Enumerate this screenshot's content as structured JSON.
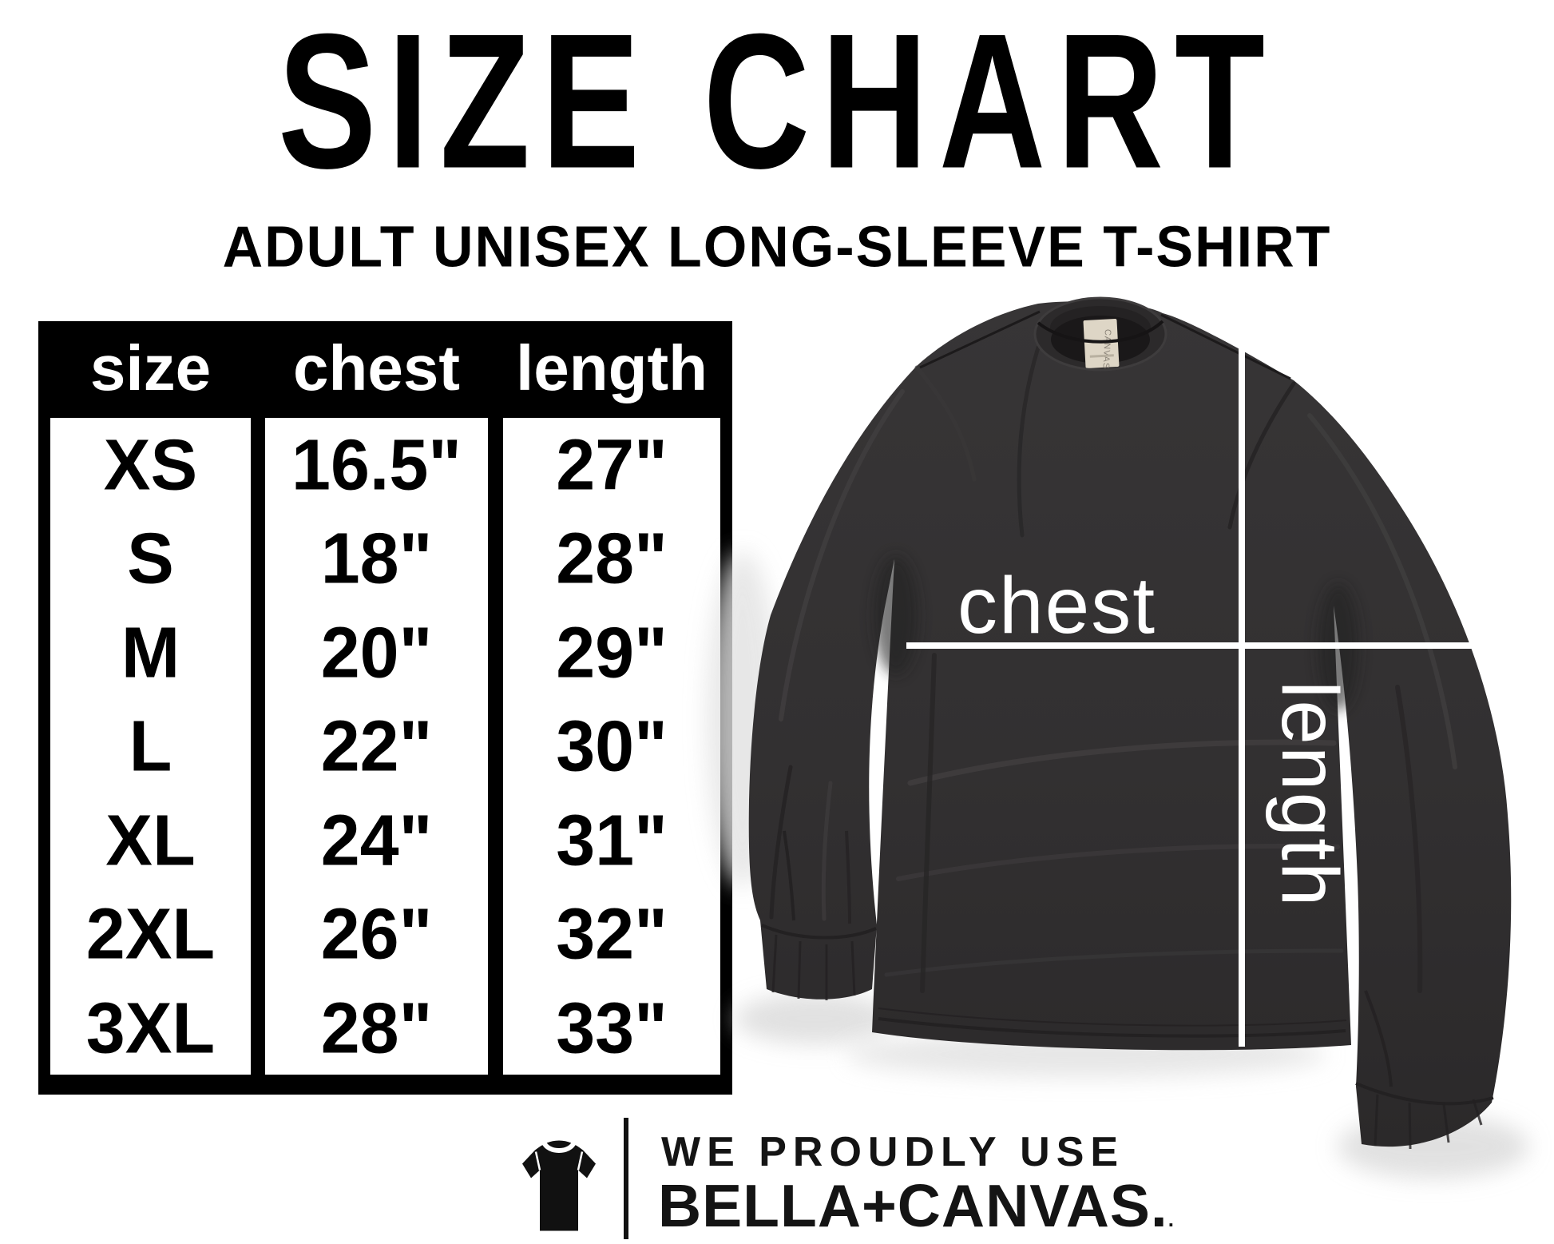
{
  "title": "SIZE CHART",
  "subtitle": "ADULT UNISEX LONG-SLEEVE T-SHIRT",
  "table": {
    "columns": [
      "size",
      "chest",
      "length"
    ],
    "rows": [
      {
        "size": "XS",
        "chest": "16.5\"",
        "length": "27\""
      },
      {
        "size": "S",
        "chest": "18\"",
        "length": "28\""
      },
      {
        "size": "M",
        "chest": "20\"",
        "length": "29\""
      },
      {
        "size": "L",
        "chest": "22\"",
        "length": "30\""
      },
      {
        "size": "XL",
        "chest": "24\"",
        "length": "31\""
      },
      {
        "size": "2XL",
        "chest": "26\"",
        "length": "32\""
      },
      {
        "size": "3XL",
        "chest": "28\"",
        "length": "33\""
      }
    ]
  },
  "chart_data": {
    "type": "table",
    "title": "SIZE CHART",
    "subtitle": "ADULT UNISEX LONG-SLEEVE T-SHIRT",
    "columns": [
      "size",
      "chest",
      "length"
    ],
    "rows": [
      [
        "XS",
        "16.5\"",
        "27\""
      ],
      [
        "S",
        "18\"",
        "28\""
      ],
      [
        "M",
        "20\"",
        "29\""
      ],
      [
        "L",
        "22\"",
        "30\""
      ],
      [
        "XL",
        "24\"",
        "31\""
      ],
      [
        "2XL",
        "26\"",
        "32\""
      ],
      [
        "3XL",
        "28\"",
        "33\""
      ]
    ]
  },
  "shirt": {
    "chest_label": "chest",
    "length_label": "length",
    "tag_label": "CANVAS"
  },
  "footer": {
    "line1": "WE PROUDLY USE",
    "line2": "BELLA+CANVAS.",
    "mark": "."
  },
  "colors": {
    "background": "#ffffff",
    "table_black": "#000000",
    "shirt_dark": "#312f30",
    "measure_line_white": "#ffffff",
    "tag_beige": "#ded6c6",
    "footer_text": "#141414"
  }
}
